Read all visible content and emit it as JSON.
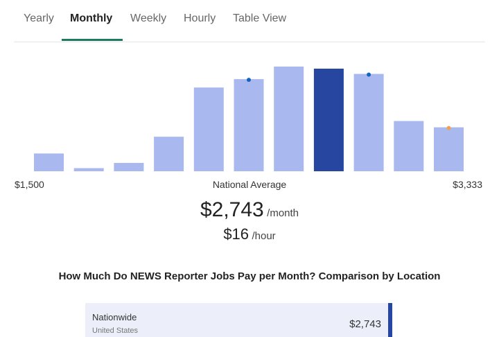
{
  "tabs": [
    {
      "label": "Yearly"
    },
    {
      "label": "Monthly",
      "active": true
    },
    {
      "label": "Weekly"
    },
    {
      "label": "Hourly"
    },
    {
      "label": "Table View"
    }
  ],
  "chart_data": {
    "type": "bar",
    "title": "",
    "relative_values": [
      17,
      3,
      8,
      33,
      80,
      88,
      100,
      98,
      93,
      48,
      42
    ],
    "highlight_index": 7,
    "markers": [
      {
        "index": 5,
        "color": "#1565c0"
      },
      {
        "index": 8,
        "color": "#1565c0"
      },
      {
        "index": 10,
        "color": "#f0a050"
      }
    ],
    "x_min_label": "$1,500",
    "x_max_label": "$3,333",
    "center_label": "National Average",
    "colors": {
      "bar": "#a9b9f0",
      "highlight": "#2746a0"
    }
  },
  "summary": {
    "monthly": "$2,743",
    "monthly_unit": "/month",
    "hourly": "$16",
    "hourly_unit": "/hour"
  },
  "comparison": {
    "title": "How Much Do NEWS Reporter Jobs Pay per Month? Comparison by Location",
    "rows": [
      {
        "name": "Nationwide",
        "sub": "United States",
        "value": "$2,743"
      }
    ]
  }
}
